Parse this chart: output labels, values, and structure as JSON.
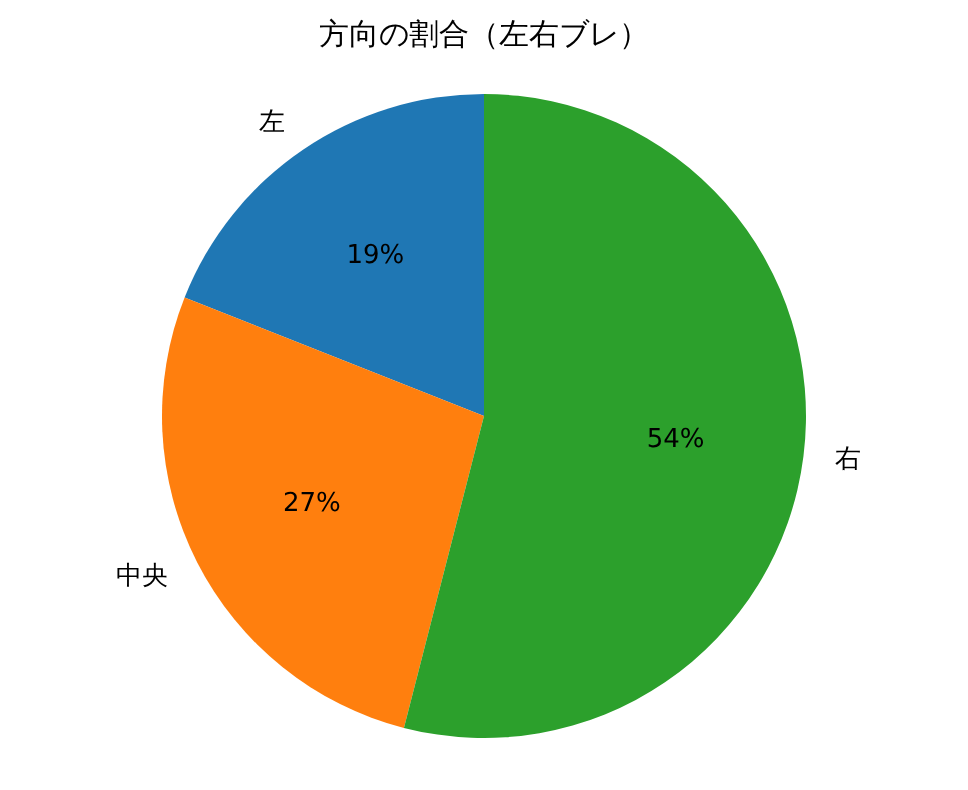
{
  "chart_data": {
    "type": "pie",
    "title": "方向の割合（左右ブレ）",
    "categories": [
      "左",
      "中央",
      "右"
    ],
    "values": [
      19,
      27,
      54
    ],
    "colors": [
      "#1f77b4",
      "#ff7f0e",
      "#2ca02c"
    ],
    "value_labels": [
      "19%",
      "27%",
      "54%"
    ]
  }
}
